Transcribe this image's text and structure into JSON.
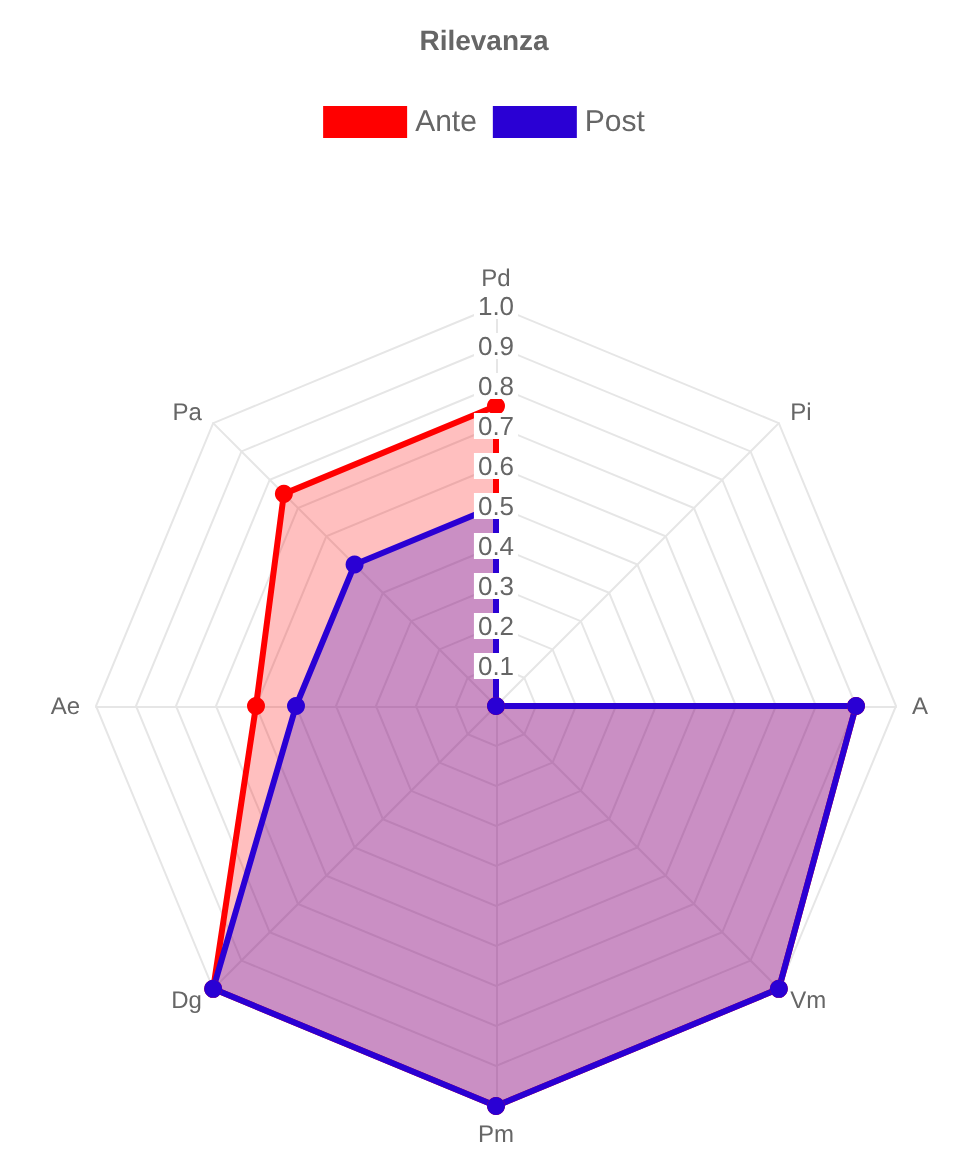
{
  "chart_data": {
    "type": "radar",
    "title": "Rilevanza",
    "categories": [
      "Pd",
      "Pi",
      "A",
      "Vm",
      "Pm",
      "Dg",
      "Ae",
      "Pa"
    ],
    "series": [
      {
        "name": "Ante",
        "color": "#ff0000",
        "values": [
          0.75,
          0,
          0.9,
          1,
          1,
          1,
          0.6,
          0.75
        ]
      },
      {
        "name": "Post",
        "color": "#2a00d4",
        "values": [
          0.5,
          0,
          0.9,
          1,
          1,
          1,
          0.5,
          0.5
        ]
      }
    ],
    "ylim": [
      0,
      1
    ],
    "yticks": [
      {
        "value": 0.1,
        "label": "0.1"
      },
      {
        "value": 0.2,
        "label": "0.2"
      },
      {
        "value": 0.3,
        "label": "0.3"
      },
      {
        "value": 0.4,
        "label": "0.4"
      },
      {
        "value": 0.5,
        "label": "0.5"
      },
      {
        "value": 0.6,
        "label": "0.6"
      },
      {
        "value": 0.7,
        "label": "0.7"
      },
      {
        "value": 0.8,
        "label": "0.8"
      },
      {
        "value": 0.9,
        "label": "0.9"
      },
      {
        "value": 1,
        "label": "1.0"
      }
    ],
    "marker": "circle",
    "grid": true,
    "legend": "top"
  }
}
